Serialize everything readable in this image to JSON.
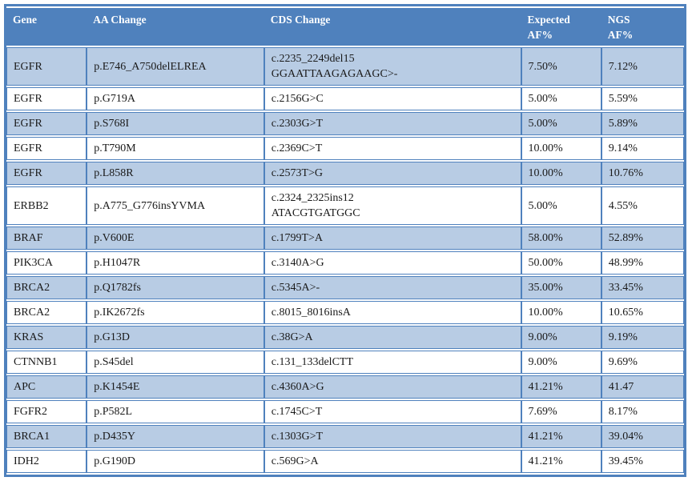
{
  "table": {
    "headers": {
      "gene": "Gene",
      "aa_change": "AA Change",
      "cds_change": "CDS Change",
      "expected_af": "Expected\nAF%",
      "ngs_af": "NGS\nAF%"
    },
    "rows": [
      {
        "gene": "EGFR",
        "aa": "p.E746_A750delELREA",
        "cds": "c.2235_2249del15\nGGAATTAAGAGAAGC>-",
        "expected": "7.50%",
        "ngs": "7.12%"
      },
      {
        "gene": "EGFR",
        "aa": "p.G719A",
        "cds": "c.2156G>C",
        "expected": "5.00%",
        "ngs": "5.59%"
      },
      {
        "gene": "EGFR",
        "aa": "p.S768I",
        "cds": "c.2303G>T",
        "expected": "5.00%",
        "ngs": "5.89%"
      },
      {
        "gene": "EGFR",
        "aa": "p.T790M",
        "cds": "c.2369C>T",
        "expected": "10.00%",
        "ngs": "9.14%"
      },
      {
        "gene": "EGFR",
        "aa": "p.L858R",
        "cds": "c.2573T>G",
        "expected": "10.00%",
        "ngs": "10.76%"
      },
      {
        "gene": "ERBB2",
        "aa": "p.A775_G776insYVMA",
        "cds": "c.2324_2325ins12\nATACGTGATGGC",
        "expected": "5.00%",
        "ngs": "4.55%"
      },
      {
        "gene": "BRAF",
        "aa": "p.V600E",
        "cds": "c.1799T>A",
        "expected": "58.00%",
        "ngs": "52.89%"
      },
      {
        "gene": "PIK3CA",
        "aa": "p.H1047R",
        "cds": "c.3140A>G",
        "expected": "50.00%",
        "ngs": "48.99%"
      },
      {
        "gene": "BRCA2",
        "aa": "p.Q1782fs",
        "cds": "c.5345A>-",
        "expected": "35.00%",
        "ngs": "33.45%"
      },
      {
        "gene": "BRCA2",
        "aa": "p.IK2672fs",
        "cds": "c.8015_8016insA",
        "expected": "10.00%",
        "ngs": "10.65%"
      },
      {
        "gene": "KRAS",
        "aa": "p.G13D",
        "cds": "c.38G>A",
        "expected": "9.00%",
        "ngs": "9.19%"
      },
      {
        "gene": "CTNNB1",
        "aa": "p.S45del",
        "cds": "c.131_133delCTT",
        "expected": "9.00%",
        "ngs": "9.69%"
      },
      {
        "gene": "APC",
        "aa": "p.K1454E",
        "cds": "c.4360A>G",
        "expected": "41.21%",
        "ngs": "41.47"
      },
      {
        "gene": "FGFR2",
        "aa": "p.P582L",
        "cds": "c.1745C>T",
        "expected": "7.69%",
        "ngs": "8.17%"
      },
      {
        "gene": "BRCA1",
        "aa": "p.D435Y",
        "cds": "c.1303G>T",
        "expected": "41.21%",
        "ngs": "39.04%"
      },
      {
        "gene": "IDH2",
        "aa": "p.G190D",
        "cds": "c.569G>A",
        "expected": "41.21%",
        "ngs": "39.45%"
      }
    ],
    "colors": {
      "header_bg": "#4F81BD",
      "header_text": "#FFFFFF",
      "band_bg": "#B8CCE4",
      "row_bg": "#FFFFFF",
      "border": "#4F81BD",
      "text": "#1A1A1A"
    }
  }
}
